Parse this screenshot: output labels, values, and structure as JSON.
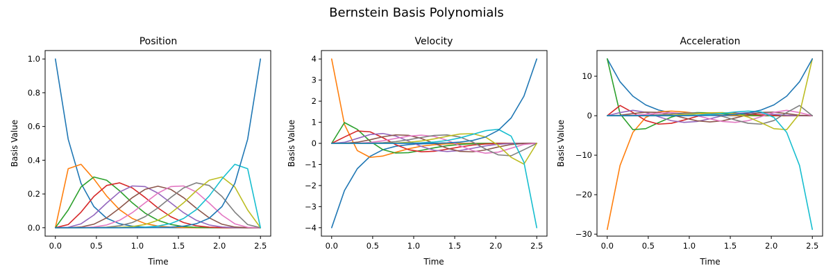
{
  "figure": {
    "title": "Bernstein Basis Polynomials"
  },
  "series_colors": [
    "#1f77b4",
    "#ff7f0e",
    "#2ca02c",
    "#d62728",
    "#9467bd",
    "#8c564b",
    "#e377c2",
    "#7f7f7f",
    "#bcbd22",
    "#17becf"
  ],
  "chart_data": [
    {
      "type": "line",
      "title": "Position",
      "xlabel": "Time",
      "ylabel": "Basis Value",
      "xlim": [
        -0.125,
        2.625
      ],
      "ylim": [
        -0.05,
        1.05
      ],
      "xticks": [
        0.0,
        0.5,
        1.0,
        1.5,
        2.0,
        2.5
      ],
      "xtick_labels": [
        "0.0",
        "0.5",
        "1.0",
        "1.5",
        "2.0",
        "2.5"
      ],
      "yticks": [
        0.0,
        0.2,
        0.4,
        0.6,
        0.8,
        1.0
      ],
      "ytick_labels": [
        "0.0",
        "0.2",
        "0.4",
        "0.6",
        "0.8",
        "1.0"
      ],
      "grid": false,
      "legend": false,
      "degree": 10,
      "derivative_order": 0,
      "time_span": [
        0,
        2.5
      ]
    },
    {
      "type": "line",
      "title": "Velocity",
      "xlabel": "Time",
      "ylabel": "Basis Value",
      "xlim": [
        -0.125,
        2.625
      ],
      "ylim": [
        -4.4,
        4.4
      ],
      "xticks": [
        0.0,
        0.5,
        1.0,
        1.5,
        2.0,
        2.5
      ],
      "xtick_labels": [
        "0.0",
        "0.5",
        "1.0",
        "1.5",
        "2.0",
        "2.5"
      ],
      "yticks": [
        -4,
        -3,
        -2,
        -1,
        0,
        1,
        2,
        3,
        4
      ],
      "ytick_labels": [
        "−4",
        "−3",
        "−2",
        "−1",
        "0",
        "1",
        "2",
        "3",
        "4"
      ],
      "grid": false,
      "legend": false,
      "degree": 10,
      "derivative_order": 1,
      "time_span": [
        0,
        2.5
      ]
    },
    {
      "type": "line",
      "title": "Acceleration",
      "xlabel": "Time",
      "ylabel": "Basis Value",
      "xlim": [
        -0.125,
        2.625
      ],
      "ylim": [
        -30.5,
        16.5
      ],
      "xticks": [
        0.0,
        0.5,
        1.0,
        1.5,
        2.0,
        2.5
      ],
      "xtick_labels": [
        "0.0",
        "0.5",
        "1.0",
        "1.5",
        "2.0",
        "2.5"
      ],
      "yticks": [
        -30,
        -20,
        -10,
        0,
        10
      ],
      "ytick_labels": [
        "−30",
        "−20",
        "−10",
        "0",
        "10"
      ],
      "grid": false,
      "legend": false,
      "degree": 10,
      "derivative_order": 2,
      "time_span": [
        0,
        2.5
      ]
    }
  ]
}
